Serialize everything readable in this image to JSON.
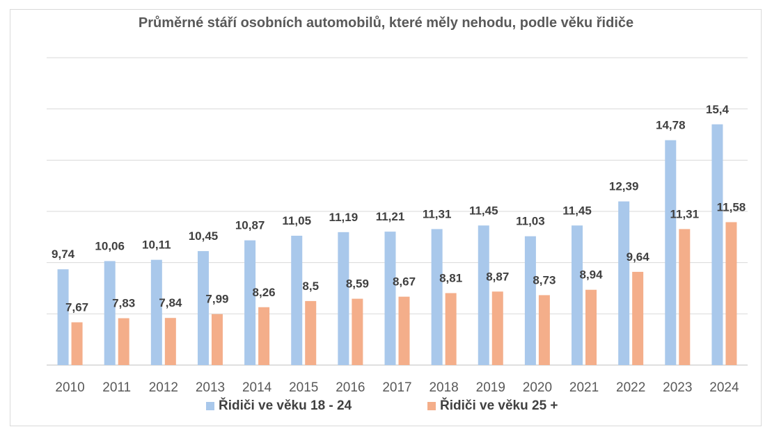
{
  "chart_data": {
    "type": "bar",
    "title": "Průměrné stáří osobních automobilů, které měly nehodu, podle věku řidiče",
    "xlabel": "",
    "ylabel": "",
    "ylim": [
      6,
      18
    ],
    "grid": true,
    "legend_position": "bottom",
    "categories": [
      "2010",
      "2011",
      "2012",
      "2013",
      "2014",
      "2015",
      "2016",
      "2017",
      "2018",
      "2019",
      "2020",
      "2021",
      "2022",
      "2023",
      "2024"
    ],
    "series": [
      {
        "name": "Řidiči ve věku 18 -  24",
        "color": "#a9c8eb",
        "values": [
          9.74,
          10.06,
          10.11,
          10.45,
          10.87,
          11.05,
          11.19,
          11.21,
          11.31,
          11.45,
          11.03,
          11.45,
          12.39,
          14.78,
          15.4
        ],
        "labels": [
          "9,74",
          "10,06",
          "10,11",
          "10,45",
          "10,87",
          "11,05",
          "11,19",
          "11,21",
          "11,31",
          "11,45",
          "11,03",
          "11,45",
          "12,39",
          "14,78",
          "15,4"
        ]
      },
      {
        "name": "Řidiči ve věku 25 +",
        "color": "#f4ae8a",
        "values": [
          7.67,
          7.83,
          7.84,
          7.99,
          8.26,
          8.5,
          8.59,
          8.67,
          8.81,
          8.87,
          8.73,
          8.94,
          9.64,
          11.31,
          11.58
        ],
        "labels": [
          "7,67",
          "7,83",
          "7,84",
          "7,99",
          "8,26",
          "8,5",
          "8,59",
          "8,67",
          "8,81",
          "8,87",
          "8,73",
          "8,94",
          "9,64",
          "11,31",
          "11,58"
        ]
      }
    ]
  }
}
